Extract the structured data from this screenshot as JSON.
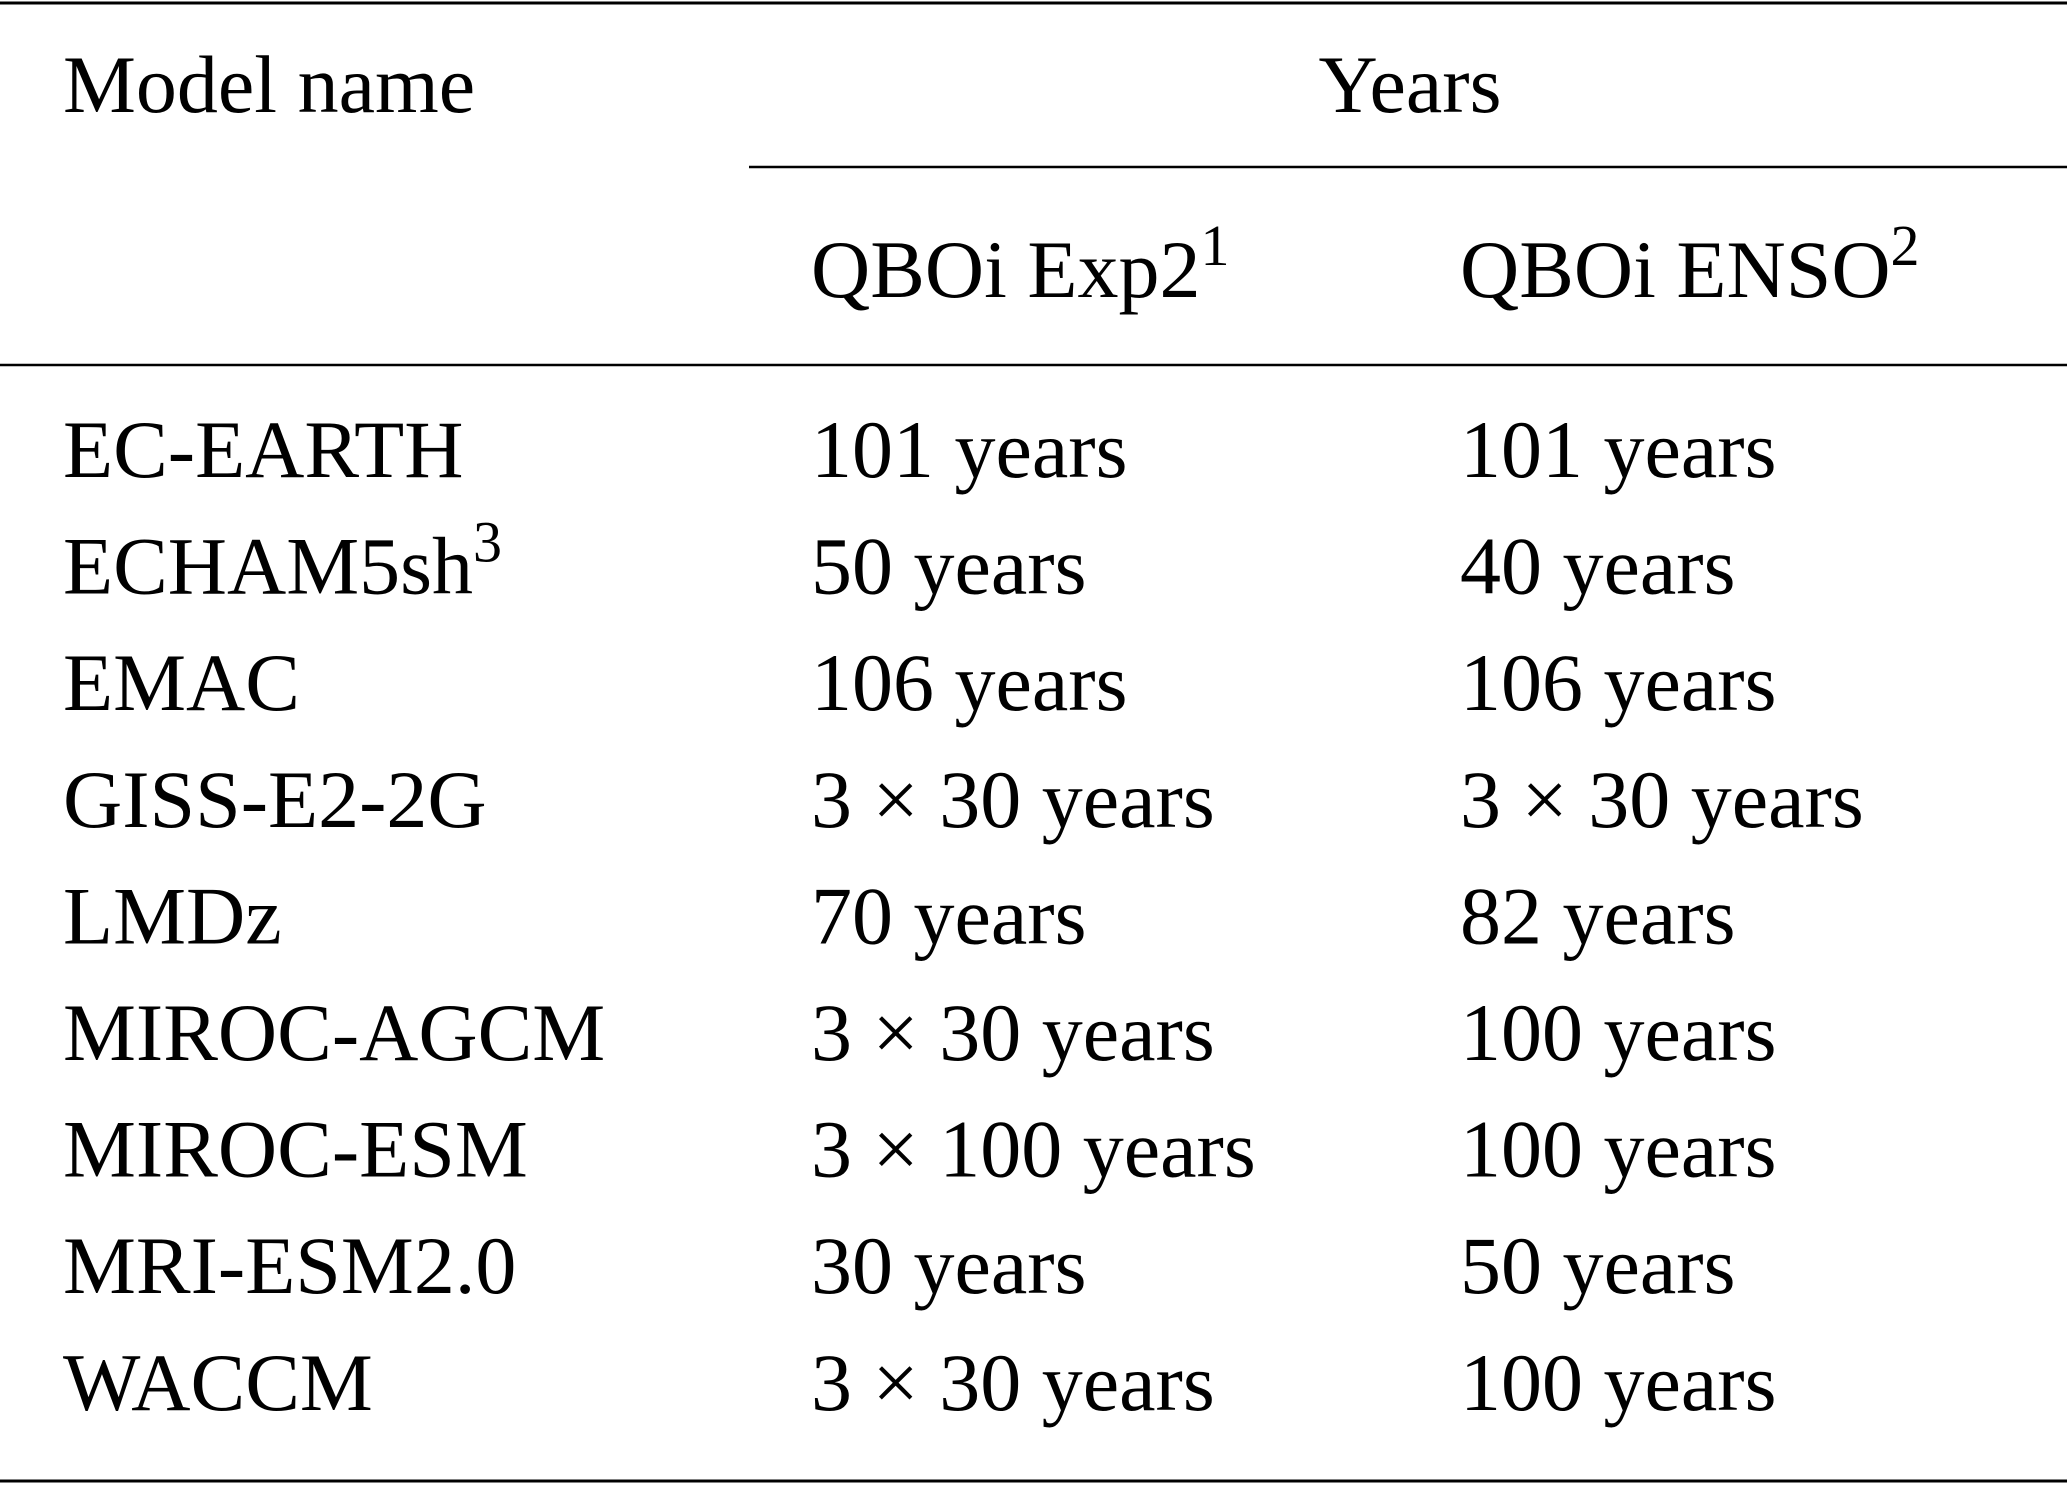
{
  "table": {
    "header": {
      "model": "Model name",
      "group": "Years",
      "columns": [
        {
          "text": "QBOi Exp2",
          "sup": "1"
        },
        {
          "text": "QBOi ENSO",
          "sup": "2"
        }
      ]
    },
    "rows": [
      [
        "EC-EARTH",
        "101 years",
        "101 years"
      ],
      [
        {
          "text": "ECHAM5sh",
          "sup": "3"
        },
        "50 years",
        "40 years"
      ],
      [
        "EMAC",
        "106 years",
        "106 years"
      ],
      [
        "GISS-E2-2G",
        "3 × 30 years",
        "3 × 30 years"
      ],
      [
        "LMDz",
        "70 years",
        "82 years"
      ],
      [
        "MIROC-AGCM",
        "3 × 30 years",
        "100 years"
      ],
      [
        "MIROC-ESM",
        "3 × 100 years",
        "100 years"
      ],
      [
        "MRI-ESM2.0",
        "30 years",
        "50 years"
      ],
      [
        "WACCM",
        "3 × 30 years",
        "100 years"
      ]
    ]
  }
}
